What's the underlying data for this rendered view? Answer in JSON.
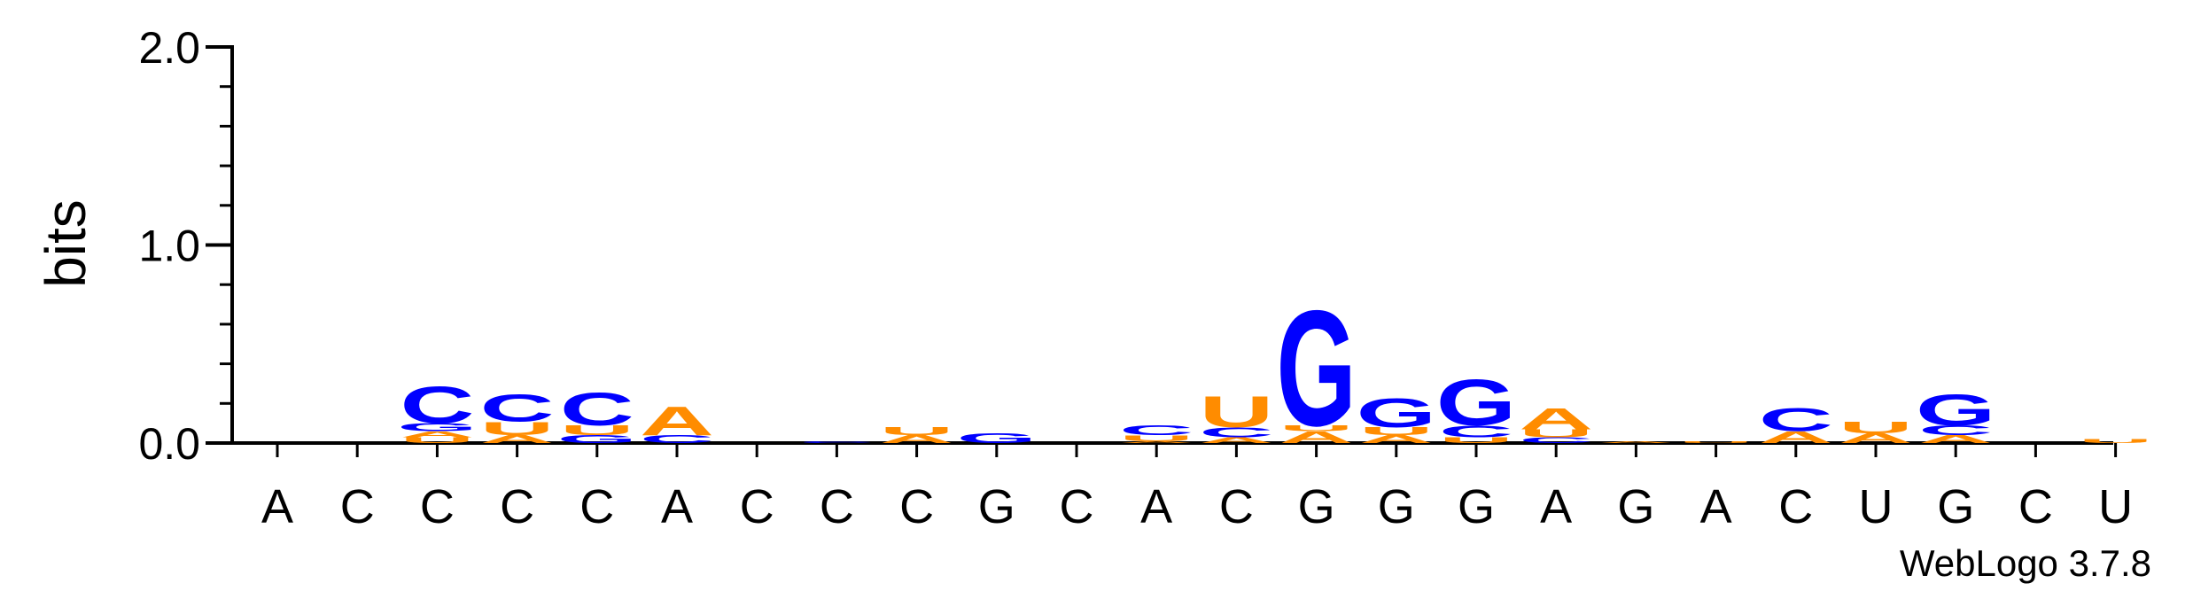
{
  "chart_data": {
    "type": "sequence-logo",
    "ylabel": "bits",
    "ylim": [
      0,
      2.0
    ],
    "yticks": [
      {
        "value": 0.0,
        "label": "0.0"
      },
      {
        "value": 1.0,
        "label": "1.0"
      },
      {
        "value": 2.0,
        "label": "2.0"
      }
    ],
    "colors": {
      "G": "#0000ff",
      "C": "#0000ff",
      "A": "#ff8c00",
      "U": "#ff8c00"
    },
    "positions": [
      {
        "label": "A",
        "stack": []
      },
      {
        "label": "C",
        "stack": []
      },
      {
        "label": "C",
        "stack": [
          {
            "letter": "U",
            "bits": 0.03
          },
          {
            "letter": "A",
            "bits": 0.03
          },
          {
            "letter": "G",
            "bits": 0.04
          },
          {
            "letter": "C",
            "bits": 0.19
          }
        ]
      },
      {
        "label": "C",
        "stack": [
          {
            "letter": "A",
            "bits": 0.04
          },
          {
            "letter": "U",
            "bits": 0.07
          },
          {
            "letter": "C",
            "bits": 0.14
          }
        ]
      },
      {
        "label": "C",
        "stack": [
          {
            "letter": "G",
            "bits": 0.04
          },
          {
            "letter": "U",
            "bits": 0.05
          },
          {
            "letter": "C",
            "bits": 0.17
          }
        ]
      },
      {
        "label": "A",
        "stack": [
          {
            "letter": "C",
            "bits": 0.04
          },
          {
            "letter": "A",
            "bits": 0.15
          }
        ]
      },
      {
        "label": "C",
        "stack": []
      },
      {
        "label": "C",
        "stack": [
          {
            "letter": "C",
            "bits": 0.01
          }
        ]
      },
      {
        "label": "C",
        "stack": [
          {
            "letter": "A",
            "bits": 0.04
          },
          {
            "letter": "U",
            "bits": 0.04
          }
        ]
      },
      {
        "label": "G",
        "stack": [
          {
            "letter": "G",
            "bits": 0.05
          }
        ]
      },
      {
        "label": "C",
        "stack": []
      },
      {
        "label": "A",
        "stack": [
          {
            "letter": "A",
            "bits": 0.01
          },
          {
            "letter": "U",
            "bits": 0.03
          },
          {
            "letter": "C",
            "bits": 0.05
          }
        ]
      },
      {
        "label": "C",
        "stack": [
          {
            "letter": "A",
            "bits": 0.03
          },
          {
            "letter": "C",
            "bits": 0.05
          },
          {
            "letter": "U",
            "bits": 0.16
          }
        ]
      },
      {
        "label": "G",
        "stack": [
          {
            "letter": "A",
            "bits": 0.06
          },
          {
            "letter": "U",
            "bits": 0.03
          },
          {
            "letter": "G",
            "bits": 0.6
          }
        ]
      },
      {
        "label": "G",
        "stack": [
          {
            "letter": "A",
            "bits": 0.04
          },
          {
            "letter": "U",
            "bits": 0.04
          },
          {
            "letter": "G",
            "bits": 0.15
          }
        ]
      },
      {
        "label": "G",
        "stack": [
          {
            "letter": "U",
            "bits": 0.03
          },
          {
            "letter": "C",
            "bits": 0.06
          },
          {
            "letter": "G",
            "bits": 0.24
          }
        ]
      },
      {
        "label": "A",
        "stack": [
          {
            "letter": "C",
            "bits": 0.03
          },
          {
            "letter": "U",
            "bits": 0.04
          },
          {
            "letter": "A",
            "bits": 0.11
          }
        ]
      },
      {
        "label": "G",
        "stack": [
          {
            "letter": "A",
            "bits": 0.01
          }
        ]
      },
      {
        "label": "A",
        "stack": [
          {
            "letter": "U",
            "bits": 0.01
          }
        ]
      },
      {
        "label": "C",
        "stack": [
          {
            "letter": "A",
            "bits": 0.06
          },
          {
            "letter": "C",
            "bits": 0.12
          }
        ]
      },
      {
        "label": "U",
        "stack": [
          {
            "letter": "A",
            "bits": 0.05
          },
          {
            "letter": "U",
            "bits": 0.06
          }
        ]
      },
      {
        "label": "G",
        "stack": [
          {
            "letter": "A",
            "bits": 0.04
          },
          {
            "letter": "C",
            "bits": 0.05
          },
          {
            "letter": "G",
            "bits": 0.16
          }
        ]
      },
      {
        "label": "C",
        "stack": []
      },
      {
        "label": "U",
        "stack": [
          {
            "letter": "U",
            "bits": 0.02
          }
        ]
      }
    ]
  },
  "credit": "WebLogo 3.7.8"
}
